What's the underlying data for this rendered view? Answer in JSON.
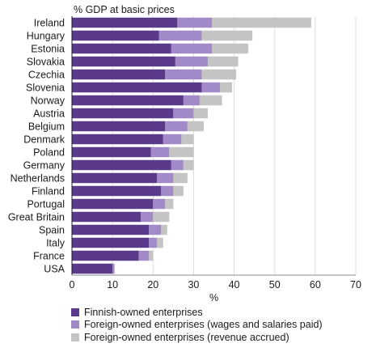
{
  "chart_data": {
    "type": "bar",
    "orientation": "horizontal",
    "stacked": true,
    "title": "% GDP at basic prices",
    "xlabel": "%",
    "ylabel": "",
    "xlim": [
      0,
      70
    ],
    "xticks": [
      0,
      10,
      20,
      30,
      40,
      50,
      60,
      70
    ],
    "grid": true,
    "legend_position": "bottom-left",
    "categories": [
      "Ireland",
      "Hungary",
      "Estonia",
      "Slovakia",
      "Czechia",
      "Slovenia",
      "Norway",
      "Austria",
      "Belgium",
      "Denmark",
      "Poland",
      "Germany",
      "Netherlands",
      "Finland",
      "Portugal",
      "Great Britain",
      "Spain",
      "Italy",
      "France",
      "USA"
    ],
    "series": [
      {
        "name": "Finnish-owned enterprises",
        "color": "#5b3a8c",
        "values": [
          26,
          21.5,
          24.5,
          25.5,
          23,
          32,
          27.5,
          25,
          23,
          22.5,
          19.5,
          24.5,
          21,
          22,
          20,
          17,
          19,
          19,
          16.5,
          10
        ]
      },
      {
        "name": "Foreign-owned enterprises (wages and salaries paid)",
        "color": "#a28ac8",
        "values": [
          8.5,
          10.5,
          10,
          8,
          9,
          4.5,
          4,
          5,
          5.5,
          4.5,
          4.5,
          3,
          4,
          3,
          3,
          3,
          3,
          2,
          2.5,
          0.5
        ]
      },
      {
        "name": "Foreign-owned enterprises (revenue accrued)",
        "color": "#c4c4c4",
        "values": [
          24.5,
          12.5,
          9,
          7.5,
          8.5,
          3,
          5.5,
          3.5,
          4,
          3,
          6,
          2.5,
          3.5,
          2.5,
          2,
          4,
          1.5,
          1.5,
          1,
          0
        ]
      }
    ]
  }
}
